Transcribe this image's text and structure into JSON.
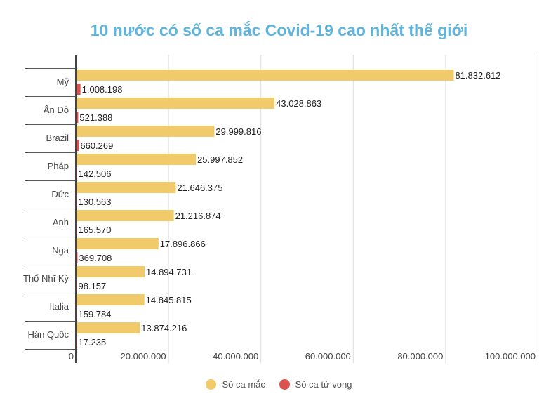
{
  "chart_data": {
    "type": "bar",
    "orientation": "horizontal",
    "title": "10 nước có số ca mắc Covid-19 cao nhất thế giới",
    "categories": [
      "Mỹ",
      "Ấn Độ",
      "Brazil",
      "Pháp",
      "Đức",
      "Anh",
      "Nga",
      "Thổ Nhĩ Kỳ",
      "Italia",
      "Hàn Quốc"
    ],
    "series": [
      {
        "name": "Số ca mắc",
        "color": "#f0ca6b",
        "values": [
          81832612,
          43028863,
          29999816,
          25997852,
          21646375,
          21216874,
          17896866,
          14894731,
          14845815,
          13874216
        ],
        "labels": [
          "81.832.612",
          "43.028.863",
          "29.999.816",
          "25.997.852",
          "21.646.375",
          "21.216.874",
          "17.896.866",
          "14.894.731",
          "14.845.815",
          "13.874.216"
        ]
      },
      {
        "name": "Số ca tử vong",
        "color": "#d9534f",
        "values": [
          1008198,
          521388,
          660269,
          142506,
          130563,
          165570,
          369708,
          98157,
          159784,
          17235
        ],
        "labels": [
          "1.008.198",
          "521.388",
          "660.269",
          "142.506",
          "130.563",
          "165.570",
          "369.708",
          "98.157",
          "159.784",
          "17.235"
        ]
      }
    ],
    "xlim": [
      0,
      100000000
    ],
    "xticks": [
      0,
      20000000,
      40000000,
      60000000,
      80000000,
      100000000
    ],
    "xtick_labels": [
      "0",
      "20.000.000",
      "40.000.000",
      "60.000.000",
      "80.000.000",
      "100.000.000"
    ],
    "grid": true,
    "legend": "bottom"
  }
}
